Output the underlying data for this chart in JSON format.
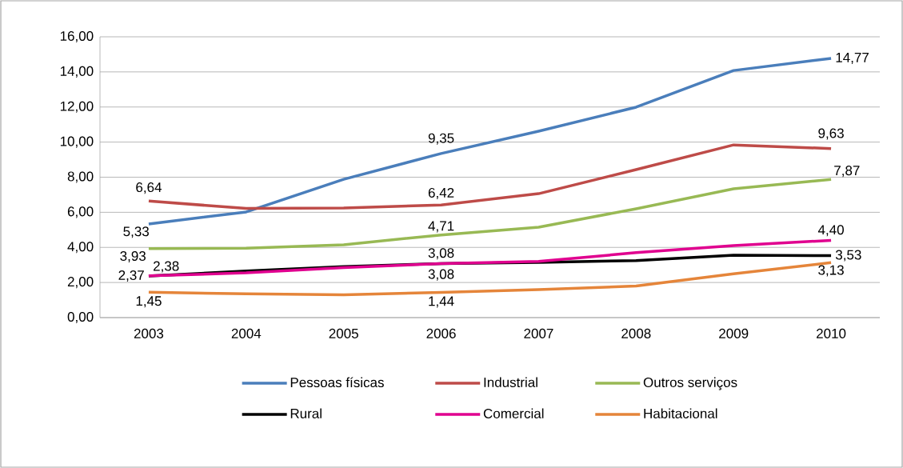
{
  "chart_data": {
    "type": "line",
    "categories": [
      "2003",
      "2004",
      "2005",
      "2006",
      "2007",
      "2008",
      "2009",
      "2010"
    ],
    "series": [
      {
        "name": "Pessoas físicas",
        "color": "#4a7ebb",
        "values": [
          5.33,
          6.02,
          7.88,
          9.35,
          10.62,
          11.99,
          14.08,
          14.77
        ],
        "value_labels": [
          "5,33",
          null,
          null,
          "9,35",
          null,
          null,
          null,
          "14,77"
        ]
      },
      {
        "name": "Industrial",
        "color": "#be4b48",
        "values": [
          6.64,
          6.22,
          6.25,
          6.42,
          7.06,
          8.43,
          9.84,
          9.63
        ],
        "value_labels": [
          "6,64",
          null,
          null,
          "6,42",
          null,
          null,
          null,
          "9,63"
        ]
      },
      {
        "name": "Outros serviços",
        "color": "#98b954",
        "values": [
          3.93,
          3.95,
          4.15,
          4.71,
          5.15,
          6.2,
          7.34,
          7.87
        ],
        "value_labels": [
          "3,93",
          null,
          null,
          "4,71",
          null,
          null,
          null,
          "7,87"
        ]
      },
      {
        "name": "Rural",
        "color": "#000000",
        "values": [
          2.37,
          2.65,
          2.9,
          3.08,
          3.15,
          3.25,
          3.55,
          3.53
        ],
        "value_labels": [
          "2,37",
          null,
          null,
          "3,08",
          null,
          null,
          null,
          "3,53"
        ]
      },
      {
        "name": "Comercial",
        "color": "#e0008f",
        "values": [
          2.38,
          2.55,
          2.85,
          3.08,
          3.2,
          3.7,
          4.1,
          4.4
        ],
        "value_labels": [
          "2,38",
          null,
          null,
          "3,08",
          null,
          null,
          null,
          "4,40"
        ]
      },
      {
        "name": "Habitacional",
        "color": "#e5853a",
        "values": [
          1.45,
          1.35,
          1.3,
          1.44,
          1.6,
          1.8,
          2.5,
          3.13
        ],
        "value_labels": [
          "1,45",
          null,
          null,
          "1,44",
          null,
          null,
          null,
          "3,13"
        ]
      }
    ],
    "ylim": [
      0,
      16
    ],
    "yticks": [
      {
        "value": 0,
        "label": "0,00"
      },
      {
        "value": 2,
        "label": "2,00"
      },
      {
        "value": 4,
        "label": "4,00"
      },
      {
        "value": 6,
        "label": "6,00"
      },
      {
        "value": 8,
        "label": "8,00"
      },
      {
        "value": 10,
        "label": "10,00"
      },
      {
        "value": 12,
        "label": "12,00"
      },
      {
        "value": 14,
        "label": "14,00"
      },
      {
        "value": 16,
        "label": "16,00"
      }
    ],
    "grid": "y",
    "legend": "bottom",
    "marker": "none",
    "line_style": "solid"
  }
}
